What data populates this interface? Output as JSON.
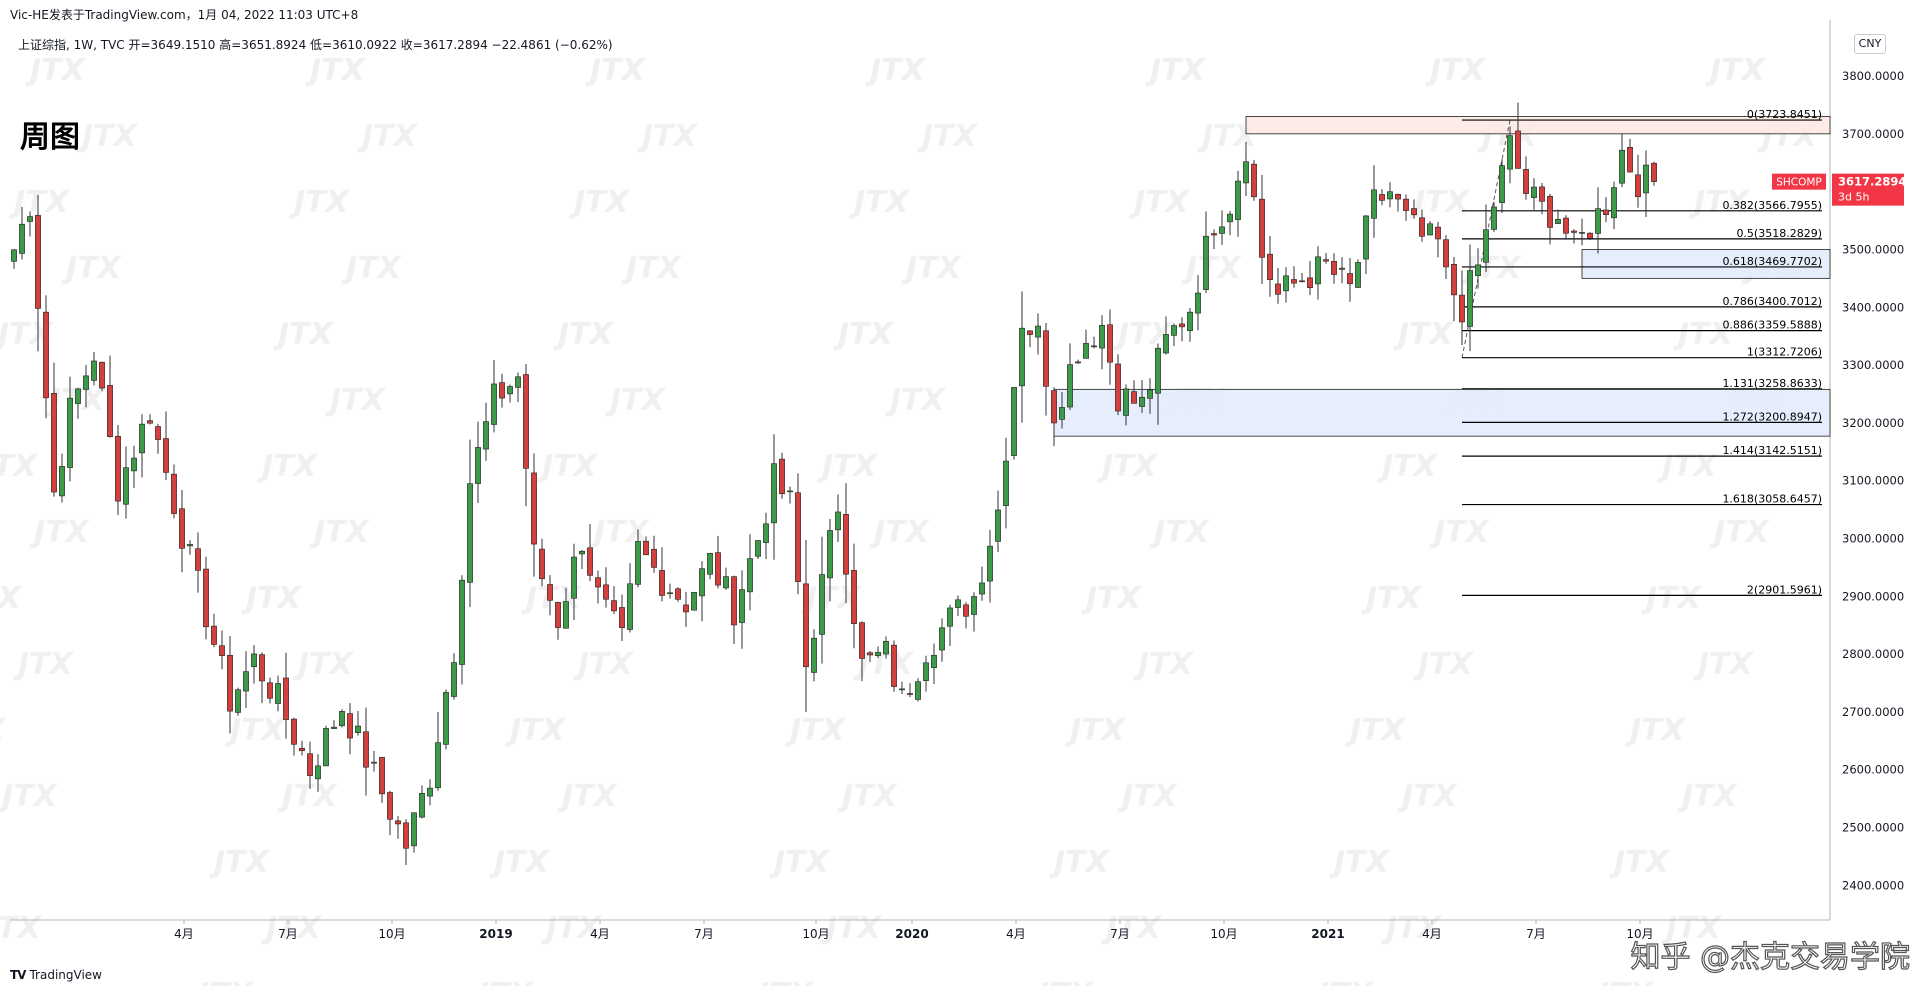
{
  "header": {
    "publish_line": "Vic-HE发表于TradingView.com，1月 04, 2022 11:03 UTC+8",
    "ohlc_line": "上证综指, 1W, TVC  开=3649.1510  高=3651.8924  低=3610.0922  收=3617.2894  −22.4861 (−0.62%)",
    "big_label": "周图",
    "currency": "CNY"
  },
  "footer": {
    "logo_text": "TradingView",
    "credit": "知乎 @杰克交易学院"
  },
  "watermark_text": "JTX",
  "colors": {
    "up": "#26a69a",
    "up_fill": "#3c9a48",
    "down": "#d4403d",
    "price_tag": "#f23645",
    "blue_zone": "#e3ecfd",
    "red_zone": "#fde9e4"
  },
  "price_tag": {
    "symbol": "SHCOMP",
    "price": "3617.2894",
    "countdown": "3d 5h"
  },
  "chart_data": {
    "type": "candlestick",
    "interval": "1W",
    "ylim": [
      2340,
      3890
    ],
    "y_ticks": [
      "3800.0000",
      "3700.0000",
      "3600.0000",
      "3500.0000",
      "3400.0000",
      "3300.0000",
      "3200.0000",
      "3100.0000",
      "3000.0000",
      "2900.0000",
      "2800.0000",
      "2700.0000",
      "2600.0000",
      "2500.0000",
      "2400.0000"
    ],
    "x_ticks": [
      {
        "label": "4月",
        "week": 10
      },
      {
        "label": "7月",
        "week": 23
      },
      {
        "label": "10月",
        "week": 36
      },
      {
        "label": "2019",
        "week": 49,
        "bold": true
      },
      {
        "label": "4月",
        "week": 62
      },
      {
        "label": "7月",
        "week": 75
      },
      {
        "label": "10月",
        "week": 89
      },
      {
        "label": "2020",
        "week": 101,
        "bold": true
      },
      {
        "label": "4月",
        "week": 114
      },
      {
        "label": "7月",
        "week": 127
      },
      {
        "label": "10月",
        "week": 140
      },
      {
        "label": "2021",
        "week": 153,
        "bold": true
      },
      {
        "label": "4月",
        "week": 166
      },
      {
        "label": "7月",
        "week": 179
      },
      {
        "label": "10月",
        "week": 192
      }
    ],
    "anchors": [
      [
        0,
        3500
      ],
      [
        2,
        3580
      ],
      [
        5,
        3080
      ],
      [
        7,
        3220
      ],
      [
        10,
        3320
      ],
      [
        13,
        3090
      ],
      [
        17,
        3220
      ],
      [
        21,
        3010
      ],
      [
        24,
        2870
      ],
      [
        27,
        2720
      ],
      [
        30,
        2790
      ],
      [
        33,
        2720
      ],
      [
        37,
        2600
      ],
      [
        41,
        2710
      ],
      [
        45,
        2590
      ],
      [
        49,
        2470
      ],
      [
        52,
        2590
      ],
      [
        55,
        2810
      ],
      [
        57,
        3100
      ],
      [
        60,
        3240
      ],
      [
        63,
        3280
      ],
      [
        65,
        2970
      ],
      [
        68,
        2860
      ],
      [
        71,
        3000
      ],
      [
        73,
        2900
      ],
      [
        76,
        2820
      ],
      [
        78,
        2980
      ],
      [
        81,
        2930
      ],
      [
        84,
        2890
      ],
      [
        87,
        2960
      ],
      [
        90,
        2880
      ],
      [
        93,
        3000
      ],
      [
        95,
        3100
      ],
      [
        97,
        3060
      ],
      [
        99,
        2780
      ],
      [
        101,
        2920
      ],
      [
        103,
        3060
      ],
      [
        106,
        2780
      ],
      [
        109,
        2800
      ],
      [
        111,
        2720
      ],
      [
        114,
        2810
      ],
      [
        117,
        2860
      ],
      [
        120,
        2900
      ],
      [
        123,
        3050
      ],
      [
        126,
        3380
      ],
      [
        128,
        3350
      ],
      [
        130,
        3220
      ],
      [
        133,
        3330
      ],
      [
        136,
        3370
      ],
      [
        138,
        3250
      ],
      [
        141,
        3230
      ],
      [
        144,
        3340
      ],
      [
        147,
        3400
      ],
      [
        150,
        3550
      ],
      [
        152,
        3580
      ],
      [
        154,
        3680
      ],
      [
        156,
        3490
      ],
      [
        158,
        3420
      ],
      [
        161,
        3450
      ],
      [
        164,
        3470
      ],
      [
        167,
        3430
      ],
      [
        170,
        3580
      ],
      [
        172,
        3600
      ],
      [
        174,
        3550
      ],
      [
        176,
        3520
      ],
      [
        178,
        3510
      ],
      [
        179,
        3450
      ],
      [
        181,
        3400
      ],
      [
        183,
        3470
      ],
      [
        185,
        3580
      ],
      [
        187,
        3680
      ],
      [
        189,
        3600
      ],
      [
        191,
        3570
      ],
      [
        193,
        3560
      ],
      [
        195,
        3500
      ],
      [
        197,
        3540
      ],
      [
        199,
        3580
      ],
      [
        201,
        3670
      ],
      [
        203,
        3620
      ],
      [
        205,
        3617
      ]
    ],
    "last_candle": {
      "open": 3649.151,
      "high": 3651.8924,
      "low": 3610.0922,
      "close": 3617.2894
    },
    "fib_levels": [
      {
        "ratio": "0",
        "label": "0(3723.8451)",
        "price": 3723.8451
      },
      {
        "ratio": "0.382",
        "label": "0.382(3566.7955)",
        "price": 3566.7955
      },
      {
        "ratio": "0.5",
        "label": "0.5(3518.2829)",
        "price": 3518.2829
      },
      {
        "ratio": "0.618",
        "label": "0.618(3469.7702)",
        "price": 3469.7702
      },
      {
        "ratio": "0.786",
        "label": "0.786(3400.7012)",
        "price": 3400.7012
      },
      {
        "ratio": "0.886",
        "label": "0.886(3359.5888)",
        "price": 3359.5888
      },
      {
        "ratio": "1",
        "label": "1(3312.7206)",
        "price": 3312.7206
      },
      {
        "ratio": "1.131",
        "label": "1.131(3258.8633)",
        "price": 3258.8633
      },
      {
        "ratio": "1.272",
        "label": "1.272(3200.8947)",
        "price": 3200.8947
      },
      {
        "ratio": "1.414",
        "label": "1.414(3142.5151)",
        "price": 3142.5151
      },
      {
        "ratio": "1.618",
        "label": "1.618(3058.6457)",
        "price": 3058.6457
      },
      {
        "ratio": "2",
        "label": "2(2901.5961)",
        "price": 2901.5961
      }
    ],
    "fib_start_week": 181,
    "zones": [
      {
        "name": "resistance-zone",
        "week_start": 154,
        "price_top": 3730,
        "price_bottom": 3700,
        "color": "red"
      },
      {
        "name": "support-zone-upper",
        "week_start": 196,
        "price_top": 3500,
        "price_bottom": 3450,
        "color": "blue"
      },
      {
        "name": "support-zone-lower",
        "week_start": 130,
        "price_top": 3258,
        "price_bottom": 3177,
        "color": "blue"
      }
    ],
    "weeks_total": 206
  }
}
